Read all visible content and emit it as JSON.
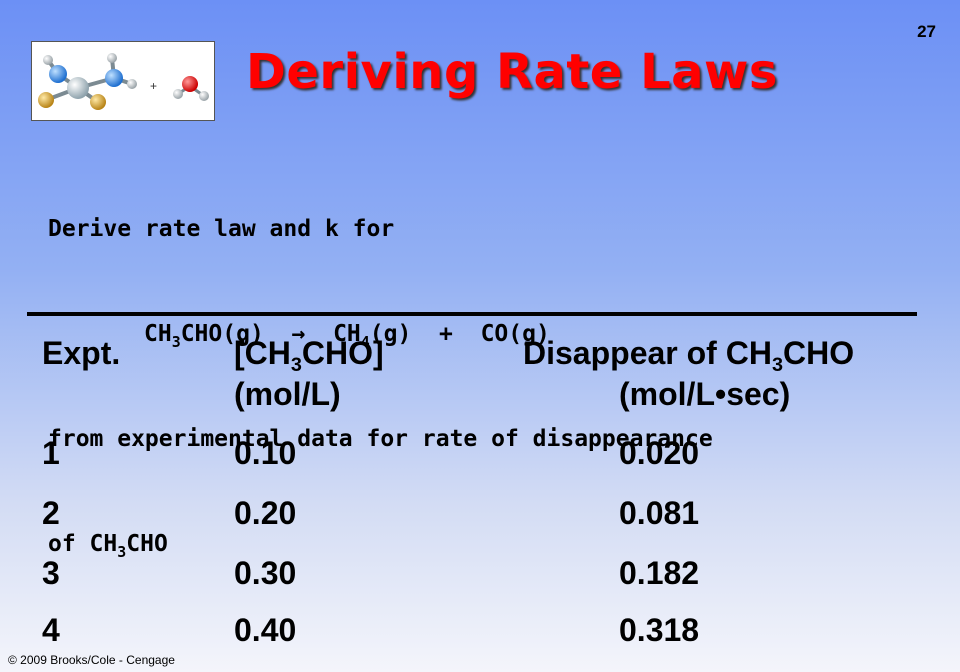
{
  "page_number": "27",
  "title": "Deriving Rate Laws",
  "molecule_image": {
    "plus_sign": "+"
  },
  "intro": {
    "line1": "Derive rate law and k for",
    "equation": {
      "reactant_pre": "CH",
      "reactant_sub": "3",
      "reactant_post": "CHO(g)",
      "arrow": "→",
      "product1_pre": "CH",
      "product1_sub": "4",
      "product1_post": "(g)",
      "plus": "+",
      "product2": "CO(g)"
    },
    "line3": "from experimental data for rate of disappearance",
    "line4_pre": "of CH",
    "line4_sub": "3",
    "line4_post": "CHO"
  },
  "table": {
    "headers": {
      "expt": "Expt.",
      "conc_pre": "[CH",
      "conc_sub": "3",
      "conc_post": "CHO]",
      "conc_unit": "(mol/L)",
      "rate_pre": "Disappear of CH",
      "rate_sub": "3",
      "rate_post": "CHO",
      "rate_unit": "(mol/L•sec)"
    },
    "rows": [
      {
        "expt": "1",
        "conc": "0.10",
        "rate": "0.020"
      },
      {
        "expt": "2",
        "conc": "0.20",
        "rate": "0.081"
      },
      {
        "expt": "3",
        "conc": "0.30",
        "rate": "0.182"
      },
      {
        "expt": "4",
        "conc": "0.40",
        "rate": "0.318"
      }
    ]
  },
  "footer": "© 2009 Brooks/Cole - Cengage"
}
